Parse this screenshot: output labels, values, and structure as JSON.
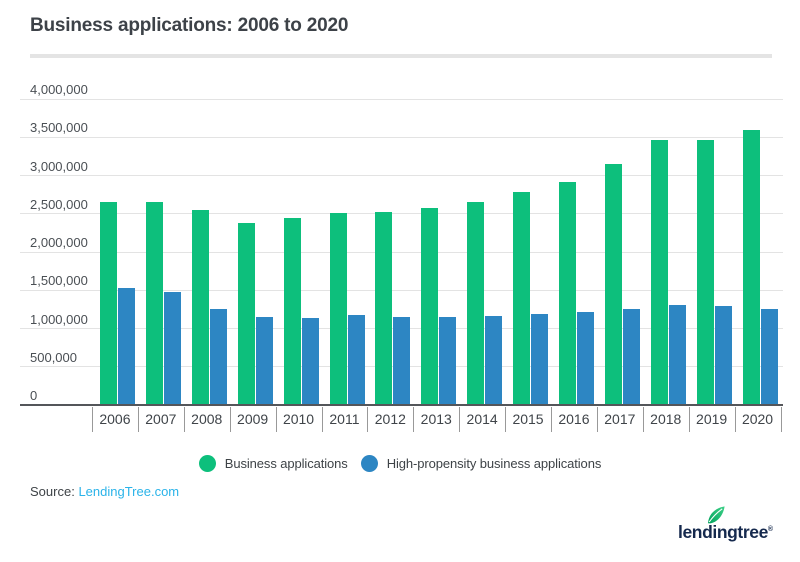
{
  "page": {
    "title": "Business applications: 2006 to 2020"
  },
  "chart_data": {
    "type": "bar",
    "title": "Business applications: 2006 to 2020",
    "categories": [
      "2006",
      "2007",
      "2008",
      "2009",
      "2010",
      "2011",
      "2012",
      "2013",
      "2014",
      "2015",
      "2016",
      "2017",
      "2018",
      "2019",
      "2020"
    ],
    "series": [
      {
        "name": "Business applications",
        "color": "#0dbf7c",
        "values": [
          2650000,
          2660000,
          2550000,
          2380000,
          2440000,
          2510000,
          2520000,
          2570000,
          2660000,
          2780000,
          2920000,
          3150000,
          3460000,
          3460000,
          3600000
        ]
      },
      {
        "name": "High-propensity business applications",
        "color": "#2d86c3",
        "values": [
          1530000,
          1480000,
          1260000,
          1150000,
          1140000,
          1170000,
          1150000,
          1150000,
          1160000,
          1190000,
          1220000,
          1260000,
          1310000,
          1290000,
          1250000
        ]
      }
    ],
    "xlabel": "",
    "ylabel": "",
    "ylim": [
      0,
      4000000
    ],
    "ytick_interval": 500000,
    "ytick_labels": [
      "0",
      "500,000",
      "1,000,000",
      "1,500,000",
      "2,000,000",
      "2,500,000",
      "3,000,000",
      "3,500,000",
      "4,000,000"
    ],
    "grid": true,
    "legend_position": "bottom"
  },
  "footer": {
    "source_label": "Source:",
    "source_link": "LendingTree.com",
    "logo_text": "lendingtree",
    "logo_reg": "®"
  },
  "colors": {
    "green": "#0dbf7c",
    "blue": "#2d86c3",
    "gridline": "#e3e3e3",
    "axis": "#54565a",
    "link": "#2ab3e9",
    "logo_navy": "#15294d",
    "text": "#3e4347"
  }
}
